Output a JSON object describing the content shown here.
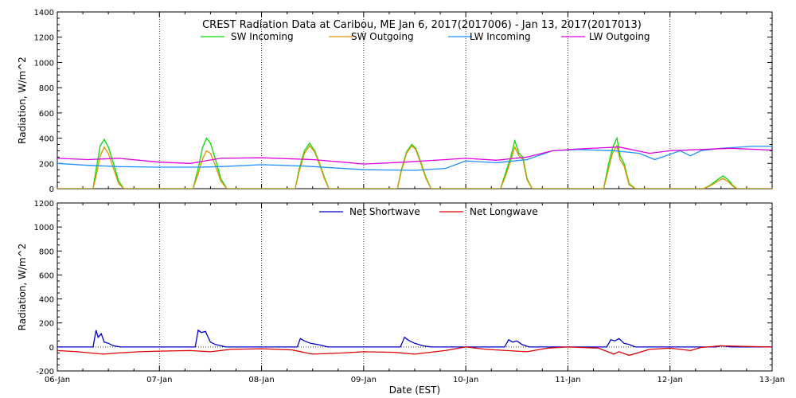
{
  "chart_data": [
    {
      "type": "line",
      "title": "CREST Radiation Data at Caribou, ME   Jan  6, 2017(2017006) - Jan 13, 2017(2017013)",
      "xlabel": "",
      "ylabel": "Radiation, W/m^2",
      "xlim": [
        6,
        13
      ],
      "ylim": [
        0,
        1400
      ],
      "yticks": [
        0,
        200,
        400,
        600,
        800,
        1000,
        1200,
        1400
      ],
      "grid": true,
      "legend_position": "top",
      "series": [
        {
          "name": "SW Incoming",
          "color": "#00dd00",
          "x": [
            6.0,
            6.35,
            6.38,
            6.42,
            6.46,
            6.5,
            6.55,
            6.6,
            6.65,
            7.0,
            7.33,
            7.38,
            7.42,
            7.46,
            7.5,
            7.55,
            7.6,
            7.66,
            8.0,
            8.33,
            8.37,
            8.42,
            8.47,
            8.52,
            8.56,
            8.62,
            8.66,
            9.0,
            9.33,
            9.37,
            9.42,
            9.47,
            9.51,
            9.56,
            9.61,
            9.66,
            10.0,
            10.34,
            10.38,
            10.44,
            10.48,
            10.52,
            10.56,
            10.6,
            10.65,
            11.0,
            11.35,
            11.4,
            11.44,
            11.48,
            11.51,
            11.55,
            11.6,
            11.66,
            12.0,
            12.33,
            12.4,
            12.48,
            12.52,
            12.57,
            12.62,
            12.66,
            13.0
          ],
          "values": [
            0,
            0,
            150,
            340,
            390,
            330,
            200,
            60,
            0,
            0,
            0,
            160,
            320,
            400,
            360,
            230,
            80,
            0,
            0,
            0,
            160,
            300,
            360,
            300,
            220,
            80,
            0,
            0,
            0,
            150,
            290,
            350,
            320,
            210,
            90,
            0,
            0,
            0,
            100,
            250,
            380,
            280,
            250,
            80,
            0,
            0,
            0,
            200,
            330,
            400,
            260,
            200,
            40,
            0,
            0,
            0,
            30,
            80,
            100,
            70,
            20,
            0,
            0
          ]
        },
        {
          "name": "SW Outgoing",
          "color": "#e09000",
          "x": [
            6.0,
            6.35,
            6.38,
            6.42,
            6.46,
            6.5,
            6.55,
            6.6,
            6.65,
            7.0,
            7.33,
            7.38,
            7.42,
            7.46,
            7.5,
            7.55,
            7.6,
            7.66,
            8.0,
            8.33,
            8.37,
            8.42,
            8.47,
            8.52,
            8.56,
            8.62,
            8.66,
            9.0,
            9.33,
            9.37,
            9.42,
            9.47,
            9.51,
            9.56,
            9.61,
            9.66,
            10.0,
            10.34,
            10.38,
            10.44,
            10.48,
            10.52,
            10.56,
            10.6,
            10.65,
            11.0,
            11.35,
            11.4,
            11.44,
            11.48,
            11.51,
            11.55,
            11.6,
            11.66,
            12.0,
            12.33,
            12.4,
            12.48,
            12.52,
            12.57,
            12.62,
            12.66,
            13.0
          ],
          "values": [
            0,
            0,
            100,
            260,
            330,
            280,
            160,
            40,
            0,
            0,
            0,
            120,
            230,
            300,
            280,
            180,
            60,
            0,
            0,
            0,
            140,
            280,
            340,
            290,
            210,
            70,
            0,
            0,
            0,
            140,
            280,
            340,
            310,
            200,
            80,
            0,
            0,
            0,
            80,
            220,
            330,
            260,
            230,
            70,
            0,
            0,
            0,
            160,
            290,
            340,
            230,
            180,
            30,
            0,
            0,
            0,
            25,
            65,
            80,
            55,
            15,
            0,
            0
          ]
        },
        {
          "name": "LW Incoming",
          "color": "#1e90ff",
          "x": [
            6.0,
            6.3,
            6.6,
            7.0,
            7.4,
            7.6,
            8.0,
            8.4,
            8.7,
            9.0,
            9.5,
            9.8,
            10.0,
            10.3,
            10.6,
            10.85,
            11.1,
            11.45,
            11.7,
            11.85,
            12.1,
            12.2,
            12.3,
            12.5,
            12.8,
            13.0
          ],
          "values": [
            200,
            185,
            175,
            170,
            170,
            175,
            190,
            180,
            165,
            150,
            145,
            160,
            220,
            205,
            230,
            300,
            310,
            300,
            280,
            230,
            300,
            260,
            300,
            320,
            335,
            335
          ]
        },
        {
          "name": "LW Outgoing",
          "color": "#e000e0",
          "x": [
            6.0,
            6.3,
            6.6,
            7.0,
            7.3,
            7.6,
            8.0,
            8.5,
            8.8,
            9.0,
            9.4,
            9.8,
            10.0,
            10.3,
            10.6,
            10.85,
            11.1,
            11.5,
            11.8,
            12.0,
            12.3,
            12.6,
            13.0
          ],
          "values": [
            240,
            230,
            240,
            210,
            200,
            240,
            245,
            230,
            210,
            195,
            210,
            230,
            240,
            225,
            250,
            300,
            315,
            330,
            280,
            300,
            310,
            320,
            305
          ]
        }
      ]
    },
    {
      "type": "line",
      "title": "",
      "xlabel": "Date (EST)",
      "ylabel": "Radiation, W/m^2",
      "xlim": [
        6,
        13
      ],
      "ylim": [
        -200,
        1200
      ],
      "yticks": [
        -200,
        0,
        200,
        400,
        600,
        800,
        1000,
        1200
      ],
      "x_tick_labels": [
        "06-Jan",
        "07-Jan",
        "08-Jan",
        "09-Jan",
        "10-Jan",
        "11-Jan",
        "12-Jan",
        "13-Jan"
      ],
      "grid": true,
      "legend_position": "top",
      "series": [
        {
          "name": "Net Shortwave",
          "color": "#0000cc",
          "x": [
            6.0,
            6.35,
            6.38,
            6.4,
            6.43,
            6.46,
            6.5,
            6.55,
            6.62,
            7.0,
            7.35,
            7.38,
            7.41,
            7.45,
            7.5,
            7.55,
            7.65,
            8.0,
            8.35,
            8.38,
            8.42,
            8.48,
            8.55,
            8.65,
            9.0,
            9.36,
            9.4,
            9.45,
            9.5,
            9.58,
            9.66,
            10.0,
            10.38,
            10.42,
            10.46,
            10.5,
            10.55,
            10.62,
            11.0,
            11.38,
            11.42,
            11.46,
            11.5,
            11.55,
            11.6,
            11.66,
            12.0,
            12.45,
            12.5,
            12.55,
            12.6,
            13.0
          ],
          "values": [
            0,
            0,
            140,
            80,
            110,
            40,
            30,
            10,
            0,
            0,
            0,
            140,
            120,
            130,
            40,
            20,
            0,
            0,
            0,
            70,
            50,
            30,
            20,
            0,
            0,
            0,
            80,
            50,
            30,
            10,
            0,
            0,
            0,
            60,
            40,
            50,
            20,
            0,
            0,
            0,
            60,
            50,
            70,
            30,
            20,
            0,
            0,
            0,
            10,
            5,
            0,
            0
          ]
        },
        {
          "name": "Net Longwave",
          "color": "#dd0000",
          "x": [
            6.0,
            6.2,
            6.45,
            6.6,
            6.8,
            7.0,
            7.3,
            7.5,
            7.7,
            8.0,
            8.3,
            8.5,
            8.8,
            9.0,
            9.3,
            9.5,
            9.8,
            10.0,
            10.2,
            10.4,
            10.6,
            10.8,
            11.0,
            11.3,
            11.45,
            11.5,
            11.6,
            11.8,
            12.0,
            12.2,
            12.3,
            12.5,
            12.7,
            13.0
          ],
          "values": [
            -30,
            -40,
            -60,
            -50,
            -40,
            -35,
            -30,
            -40,
            -20,
            -15,
            -25,
            -60,
            -50,
            -40,
            -45,
            -60,
            -30,
            0,
            -20,
            -30,
            -40,
            -10,
            0,
            -10,
            -60,
            -40,
            -70,
            -20,
            -10,
            -30,
            -5,
            10,
            5,
            0
          ]
        }
      ]
    }
  ]
}
